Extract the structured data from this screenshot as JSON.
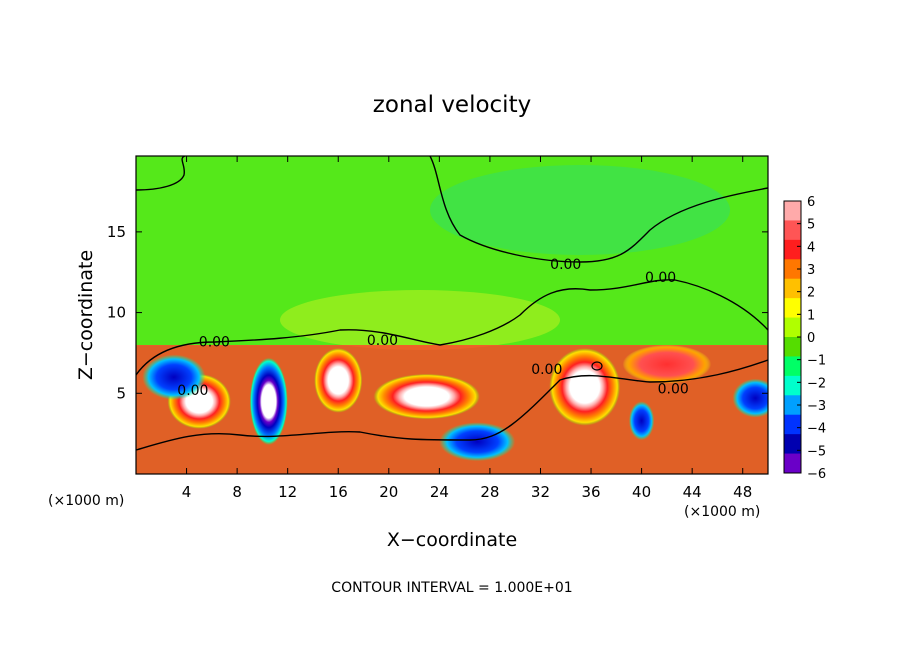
{
  "chart_data": {
    "type": "heatmap",
    "title": "zonal velocity",
    "xlabel": "X−coordinate",
    "ylabel": "Z−coordinate",
    "x_unit_left": "(×1000 m)",
    "x_unit_right": "(×1000 m)",
    "footer": "CONTOUR INTERVAL = 1.000E+01",
    "xlim": [
      0,
      50
    ],
    "ylim": [
      0,
      19.7
    ],
    "x_ticks": [
      4,
      8,
      12,
      16,
      20,
      24,
      28,
      32,
      36,
      40,
      44,
      48
    ],
    "x_tick_labels": [
      "4",
      "8",
      "12",
      "16",
      "20",
      "24",
      "28",
      "32",
      "36",
      "40",
      "44",
      "48"
    ],
    "y_ticks": [
      5,
      10,
      15
    ],
    "y_tick_labels": [
      "5",
      "10",
      "15"
    ],
    "colorbar": {
      "levels": [
        6,
        5,
        4,
        3,
        2,
        1,
        0,
        -1,
        -2,
        -3,
        -4,
        -5,
        -6
      ],
      "labels": [
        "6",
        "5",
        "4",
        "3",
        "2",
        "1",
        "0",
        "−1",
        "−2",
        "−3",
        "−4",
        "−5",
        "−6"
      ],
      "colors": [
        "#ffaaaa",
        "#ff5555",
        "#ff1e1e",
        "#ff7700",
        "#ffc000",
        "#ffff00",
        "#b0ff00",
        "#55dd00",
        "#00ff66",
        "#00ffcc",
        "#00a0ff",
        "#0033ff",
        "#0000b0",
        "#6a00c8"
      ]
    },
    "contour_labels": [
      {
        "text": "0.00",
        "x": 6.2,
        "z": 8.2
      },
      {
        "text": "0.00",
        "x": 4.5,
        "z": 5.2
      },
      {
        "text": "0.00",
        "x": 19.5,
        "z": 8.3
      },
      {
        "text": "0.00",
        "x": 34.0,
        "z": 13.0
      },
      {
        "text": "0.00",
        "x": 41.5,
        "z": 12.2
      },
      {
        "text": "0.00",
        "x": 32.5,
        "z": 6.5
      },
      {
        "text": "0.00",
        "x": 42.5,
        "z": 5.3
      }
    ],
    "field_features": [
      {
        "x": 5.0,
        "z": 4.5,
        "v": 6,
        "rx": 2.5,
        "rz": 1.7
      },
      {
        "x": 16.0,
        "z": 5.8,
        "v": 6,
        "rx": 1.9,
        "rz": 2.0
      },
      {
        "x": 23.0,
        "z": 4.8,
        "v": 6,
        "rx": 4.2,
        "rz": 1.4
      },
      {
        "x": 35.5,
        "z": 5.4,
        "v": 6,
        "rx": 2.8,
        "rz": 2.4
      },
      {
        "x": 10.5,
        "z": 4.5,
        "v": -5,
        "rx": 1.5,
        "rz": 2.7
      },
      {
        "x": 3.0,
        "z": 6.0,
        "v": -4,
        "rx": 2.5,
        "rz": 1.4
      },
      {
        "x": 27.0,
        "z": 2.0,
        "v": -4,
        "rx": 3.0,
        "rz": 1.2
      },
      {
        "x": 49.0,
        "z": 4.7,
        "v": -4,
        "rx": 1.8,
        "rz": 1.2
      },
      {
        "x": 40.0,
        "z": 3.3,
        "v": -4,
        "rx": 1.0,
        "rz": 1.2
      },
      {
        "x": 42.0,
        "z": 6.8,
        "v": 4,
        "rx": 3.5,
        "rz": 1.2
      }
    ]
  }
}
